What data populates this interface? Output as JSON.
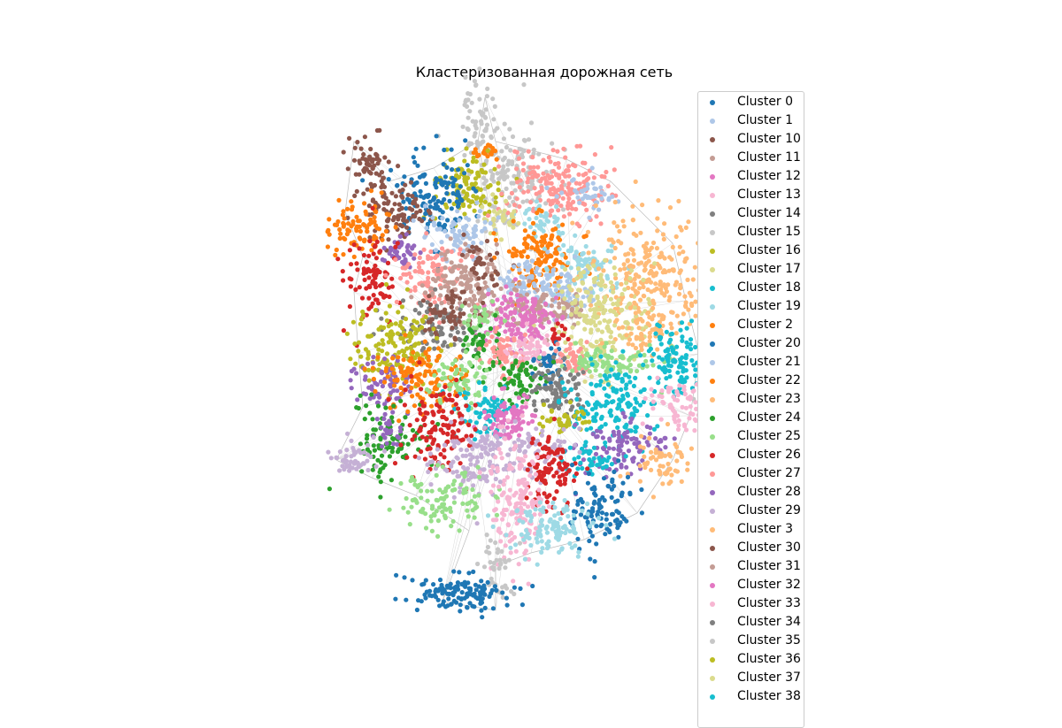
{
  "chart_data": {
    "type": "scatter",
    "title": "Кластеризованная дорожная сеть",
    "xlabel": "",
    "ylabel": "",
    "axes_visible": false,
    "grid": false,
    "legend_placement": "right, outside map",
    "background_network_color": "#bbbbbb",
    "series": [
      {
        "name": "Cluster 0",
        "color": "#1f77b4"
      },
      {
        "name": "Cluster 1",
        "color": "#aec7e8"
      },
      {
        "name": "Cluster 10",
        "color": "#8c564b"
      },
      {
        "name": "Cluster 11",
        "color": "#c49c94"
      },
      {
        "name": "Cluster 12",
        "color": "#e377c2"
      },
      {
        "name": "Cluster 13",
        "color": "#f7b6d2"
      },
      {
        "name": "Cluster 14",
        "color": "#7f7f7f"
      },
      {
        "name": "Cluster 15",
        "color": "#c7c7c7"
      },
      {
        "name": "Cluster 16",
        "color": "#bcbd22"
      },
      {
        "name": "Cluster 17",
        "color": "#dbdb8d"
      },
      {
        "name": "Cluster 18",
        "color": "#17becf"
      },
      {
        "name": "Cluster 19",
        "color": "#9edae5"
      },
      {
        "name": "Cluster 2",
        "color": "#ff7f0e"
      },
      {
        "name": "Cluster 20",
        "color": "#1f77b4"
      },
      {
        "name": "Cluster 21",
        "color": "#aec7e8"
      },
      {
        "name": "Cluster 22",
        "color": "#ff7f0e"
      },
      {
        "name": "Cluster 23",
        "color": "#ffbb78"
      },
      {
        "name": "Cluster 24",
        "color": "#2ca02c"
      },
      {
        "name": "Cluster 25",
        "color": "#98df8a"
      },
      {
        "name": "Cluster 26",
        "color": "#d62728"
      },
      {
        "name": "Cluster 27",
        "color": "#ff9896"
      },
      {
        "name": "Cluster 28",
        "color": "#9467bd"
      },
      {
        "name": "Cluster 29",
        "color": "#c5b0d5"
      },
      {
        "name": "Cluster 3",
        "color": "#ffbb78"
      },
      {
        "name": "Cluster 30",
        "color": "#8c564b"
      },
      {
        "name": "Cluster 31",
        "color": "#c49c94"
      },
      {
        "name": "Cluster 32",
        "color": "#e377c2"
      },
      {
        "name": "Cluster 33",
        "color": "#f7b6d2"
      },
      {
        "name": "Cluster 34",
        "color": "#7f7f7f"
      },
      {
        "name": "Cluster 35",
        "color": "#c7c7c7"
      },
      {
        "name": "Cluster 36",
        "color": "#bcbd22"
      },
      {
        "name": "Cluster 37",
        "color": "#dbdb8d"
      },
      {
        "name": "Cluster 38",
        "color": "#17becf"
      }
    ]
  }
}
